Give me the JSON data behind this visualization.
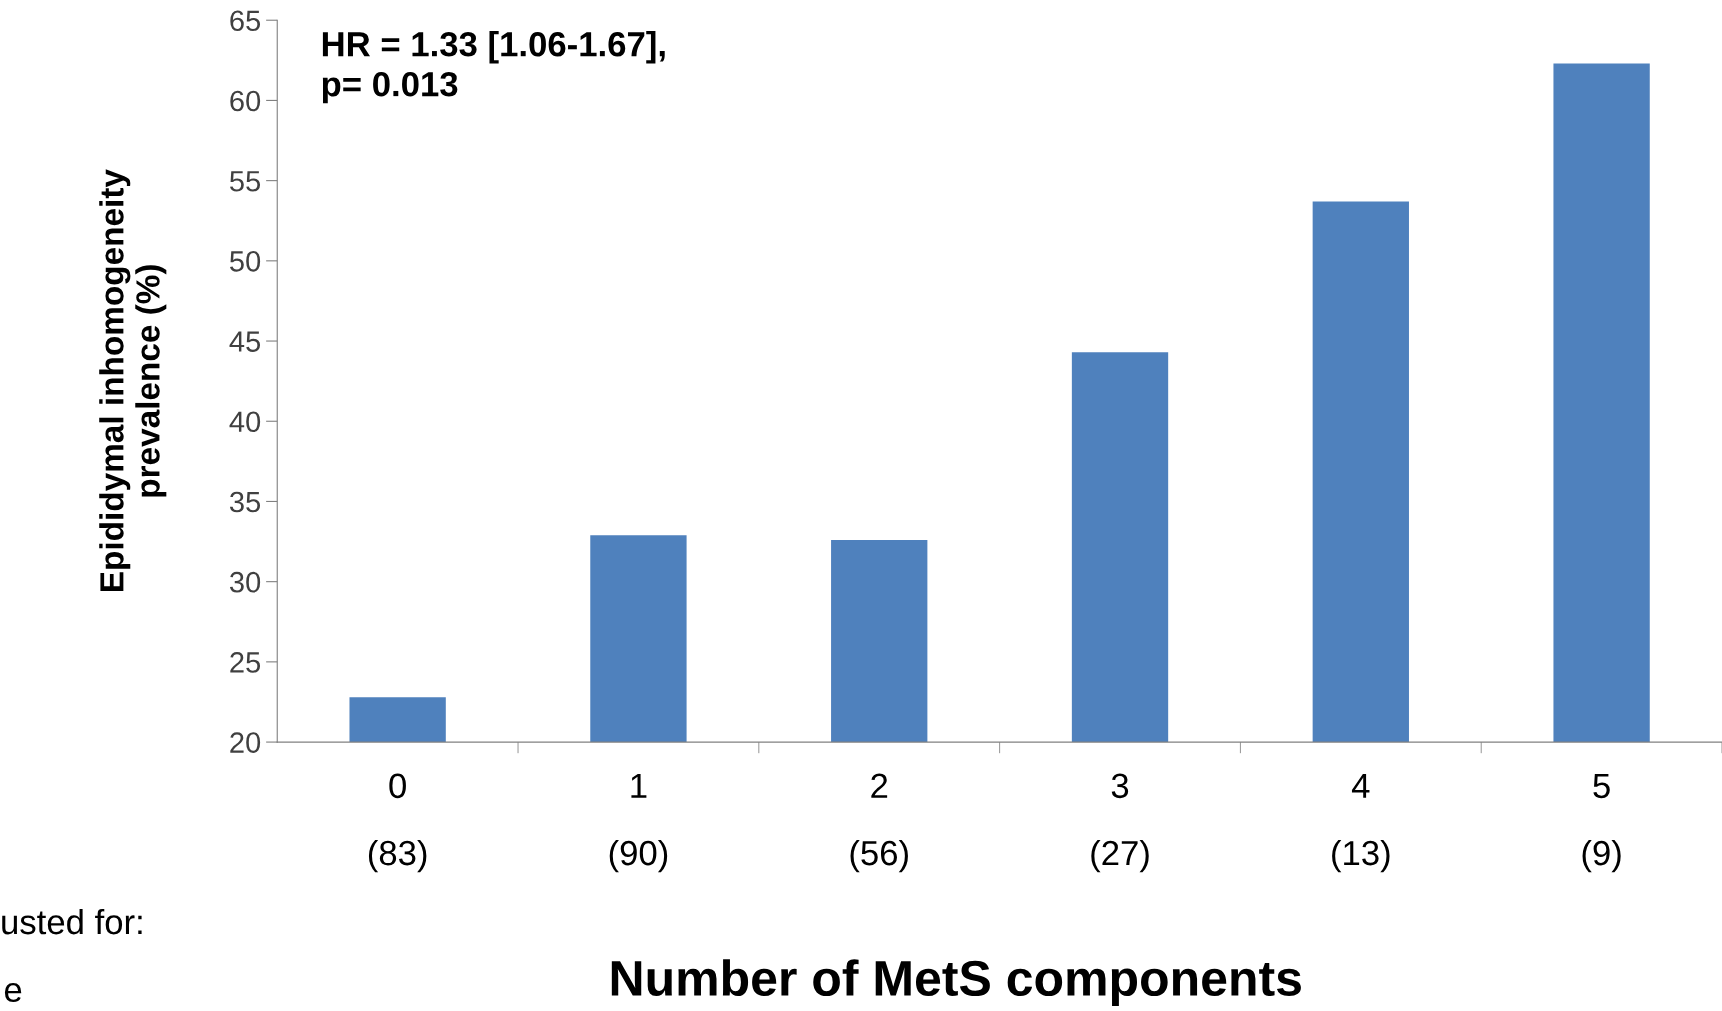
{
  "chart_data": {
    "type": "bar",
    "xlabel": "Number of MetS components",
    "ylabel": "Epididymal inhomogeneity\nprevalence (%)",
    "categories": [
      "0\n\n(83)",
      "1\n\n(90)",
      "2\n\n(56)",
      "3\n\n(27)",
      "4\n\n(13)",
      "5\n\n(9)"
    ],
    "values": [
      22.8,
      32.9,
      32.6,
      44.3,
      53.7,
      62.3
    ],
    "color": "#4f81bd",
    "ylim": [
      20,
      65
    ],
    "yticks": [
      20,
      25,
      30,
      35,
      40,
      45,
      50,
      55,
      60,
      65
    ],
    "grid": false,
    "legend": false,
    "annotations": [
      "HR = 1.33 [1.06-1.67],\np= 0.013",
      "usted for:",
      "e"
    ]
  }
}
